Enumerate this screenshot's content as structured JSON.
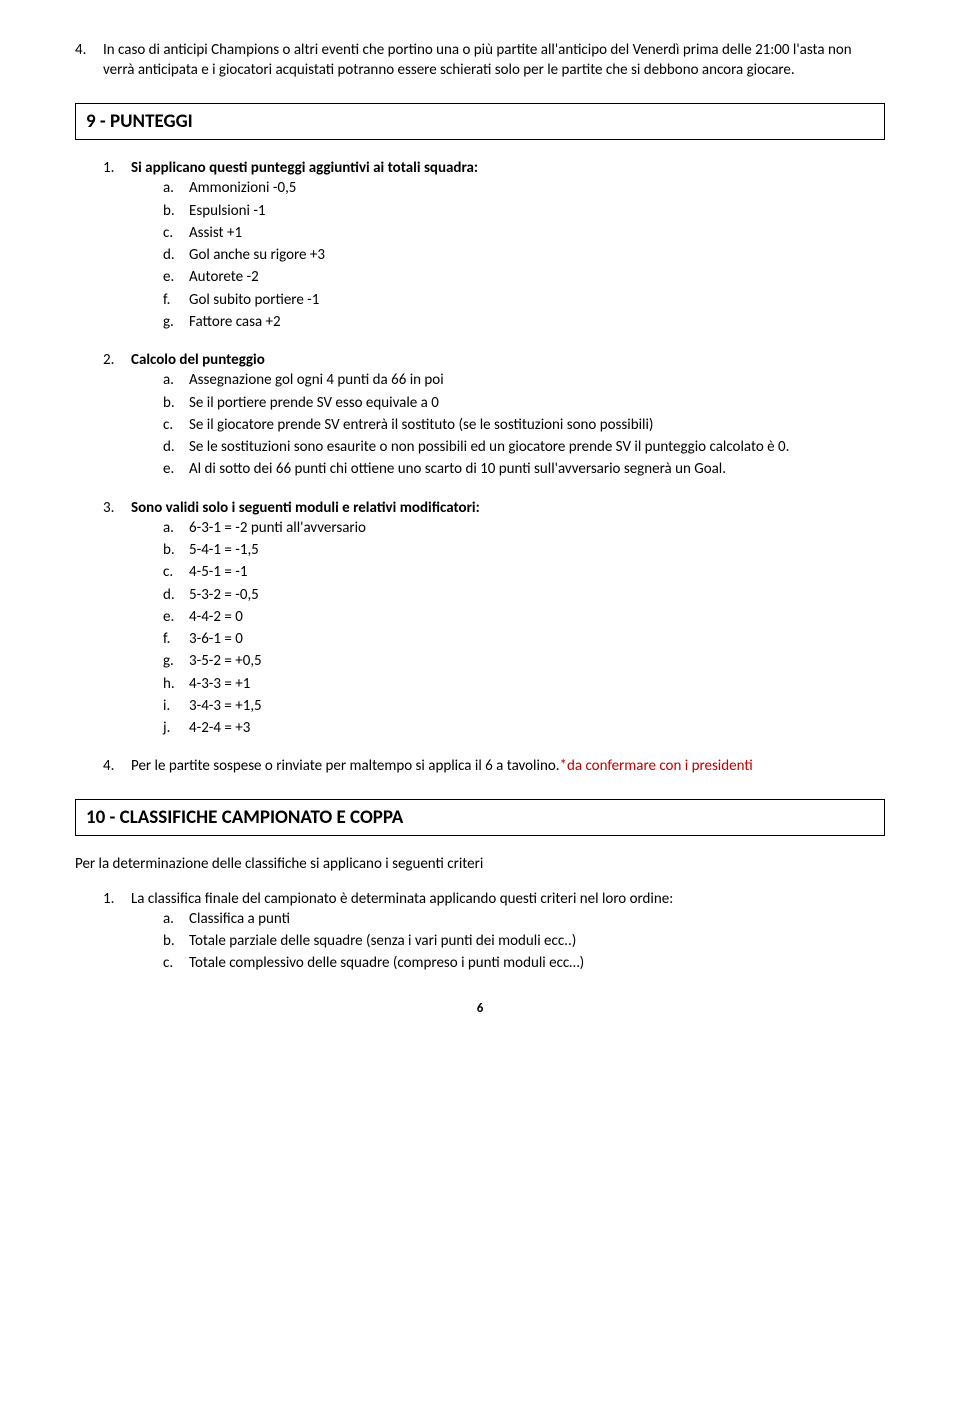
{
  "intro_item": {
    "marker": "4.",
    "text": "In caso di anticipi Champions o altri eventi che portino una o più partite all'anticipo del Venerdì prima delle 21:00 l'asta non verrà anticipata e i giocatori acquistati potranno essere schierati solo per le partite che si debbono ancora giocare."
  },
  "section9": {
    "title": "9 - PUNTEGGI",
    "items": [
      {
        "marker": "1.",
        "bold_lead": "Si applicano questi punteggi aggiuntivi ai totali squadra:",
        "sub": [
          {
            "m": "a.",
            "t": "Ammonizioni -0,5"
          },
          {
            "m": "b.",
            "t": "Espulsioni -1"
          },
          {
            "m": "c.",
            "t": "Assist +1"
          },
          {
            "m": "d.",
            "t": "Gol anche su rigore +3"
          },
          {
            "m": "e.",
            "t": "Autorete -2"
          },
          {
            "m": "f.",
            "t": "Gol subito portiere -1"
          },
          {
            "m": "g.",
            "t": "Fattore casa +2"
          }
        ]
      },
      {
        "marker": "2.",
        "bold_lead": "Calcolo del punteggio",
        "sub": [
          {
            "m": "a.",
            "t": "Assegnazione gol ogni 4 punti da 66 in poi"
          },
          {
            "m": "b.",
            "t": "Se il portiere prende SV esso equivale a 0"
          },
          {
            "m": "c.",
            "t": "Se il giocatore prende SV entrerà il sostituto (se le sostituzioni sono possibili)"
          },
          {
            "m": "d.",
            "t": "Se le sostituzioni sono esaurite o non possibili ed un giocatore prende SV il punteggio calcolato è 0."
          },
          {
            "m": "e.",
            "t": "Al di sotto dei 66 punti chi ottiene uno scarto di 10 punti sull'avversario segnerà un Goal."
          }
        ]
      },
      {
        "marker": "3.",
        "bold_lead": "Sono validi solo i seguenti moduli e relativi modificatori:",
        "sub": [
          {
            "m": "a.",
            "t": "6-3-1 = -2 punti all'avversario"
          },
          {
            "m": "b.",
            "t": "5-4-1 = -1,5"
          },
          {
            "m": "c.",
            "t": "4-5-1 = -1"
          },
          {
            "m": "d.",
            "t": "5-3-2 = -0,5"
          },
          {
            "m": "e.",
            "t": "4-4-2 = 0"
          },
          {
            "m": "f.",
            "t": "3-6-1 = 0"
          },
          {
            "m": "g.",
            "t": "3-5-2 = +0,5"
          },
          {
            "m": "h.",
            "t": "4-3-3 = +1"
          },
          {
            "m": "i.",
            "t": "3-4-3 = +1,5"
          },
          {
            "m": "j.",
            "t": "4-2-4 = +3"
          }
        ]
      },
      {
        "marker": "4.",
        "plain_lead": "Per le partite sospese o rinviate per maltempo si applica il 6 a tavolino.",
        "red_tail": "*da confermare con i presidenti"
      }
    ]
  },
  "section10": {
    "title": "10 - CLASSIFICHE CAMPIONATO E COPPA",
    "intro": "Per la determinazione delle classifiche si applicano i seguenti criteri",
    "items": [
      {
        "marker": "1.",
        "plain_lead": "La classifica finale del campionato è determinata applicando questi criteri nel loro ordine:",
        "sub": [
          {
            "m": "a.",
            "t": "Classifica a punti"
          },
          {
            "m": "b.",
            "t": "Totale parziale delle squadre (senza i vari punti dei moduli ecc..)"
          },
          {
            "m": "c.",
            "t": "Totale complessivo delle squadre (compreso i punti moduli ecc…)"
          }
        ]
      }
    ]
  },
  "page_number": "6"
}
